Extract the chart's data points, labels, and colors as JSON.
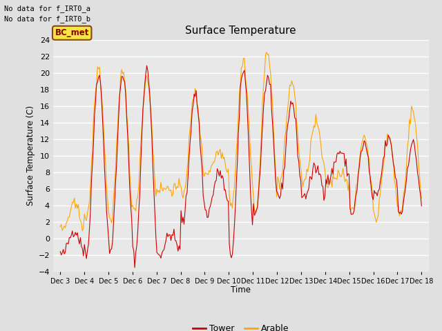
{
  "title": "Surface Temperature",
  "ylabel": "Surface Temperature (C)",
  "xlabel": "Time",
  "text_top_left": [
    "No data for f_IRT0_a",
    "No data for f_IRT0_b"
  ],
  "legend_box_label": "BC_met",
  "legend_box_facecolor": "#F5E642",
  "legend_box_edgecolor": "#8B4513",
  "tower_color": "#CC0000",
  "arable_color": "#FFA500",
  "fig_facecolor": "#E0E0E0",
  "plot_facecolor": "#E8E8E8",
  "ylim": [
    -4,
    24
  ],
  "yticks": [
    -4,
    -2,
    0,
    2,
    4,
    6,
    8,
    10,
    12,
    14,
    16,
    18,
    20,
    22,
    24
  ],
  "x_tick_labels": [
    "Dec 3",
    "Dec 4",
    "Dec 5",
    "Dec 6",
    "Dec 7",
    "Dec 8",
    "Dec 9",
    "Dec 10",
    "Dec 11",
    "Dec 12",
    "Dec 13",
    "Dec 14",
    "Dec 15",
    "Dec 16",
    "Dec 17",
    "Dec 18"
  ],
  "figsize": [
    6.4,
    4.8
  ],
  "dpi": 100,
  "seed": 42
}
